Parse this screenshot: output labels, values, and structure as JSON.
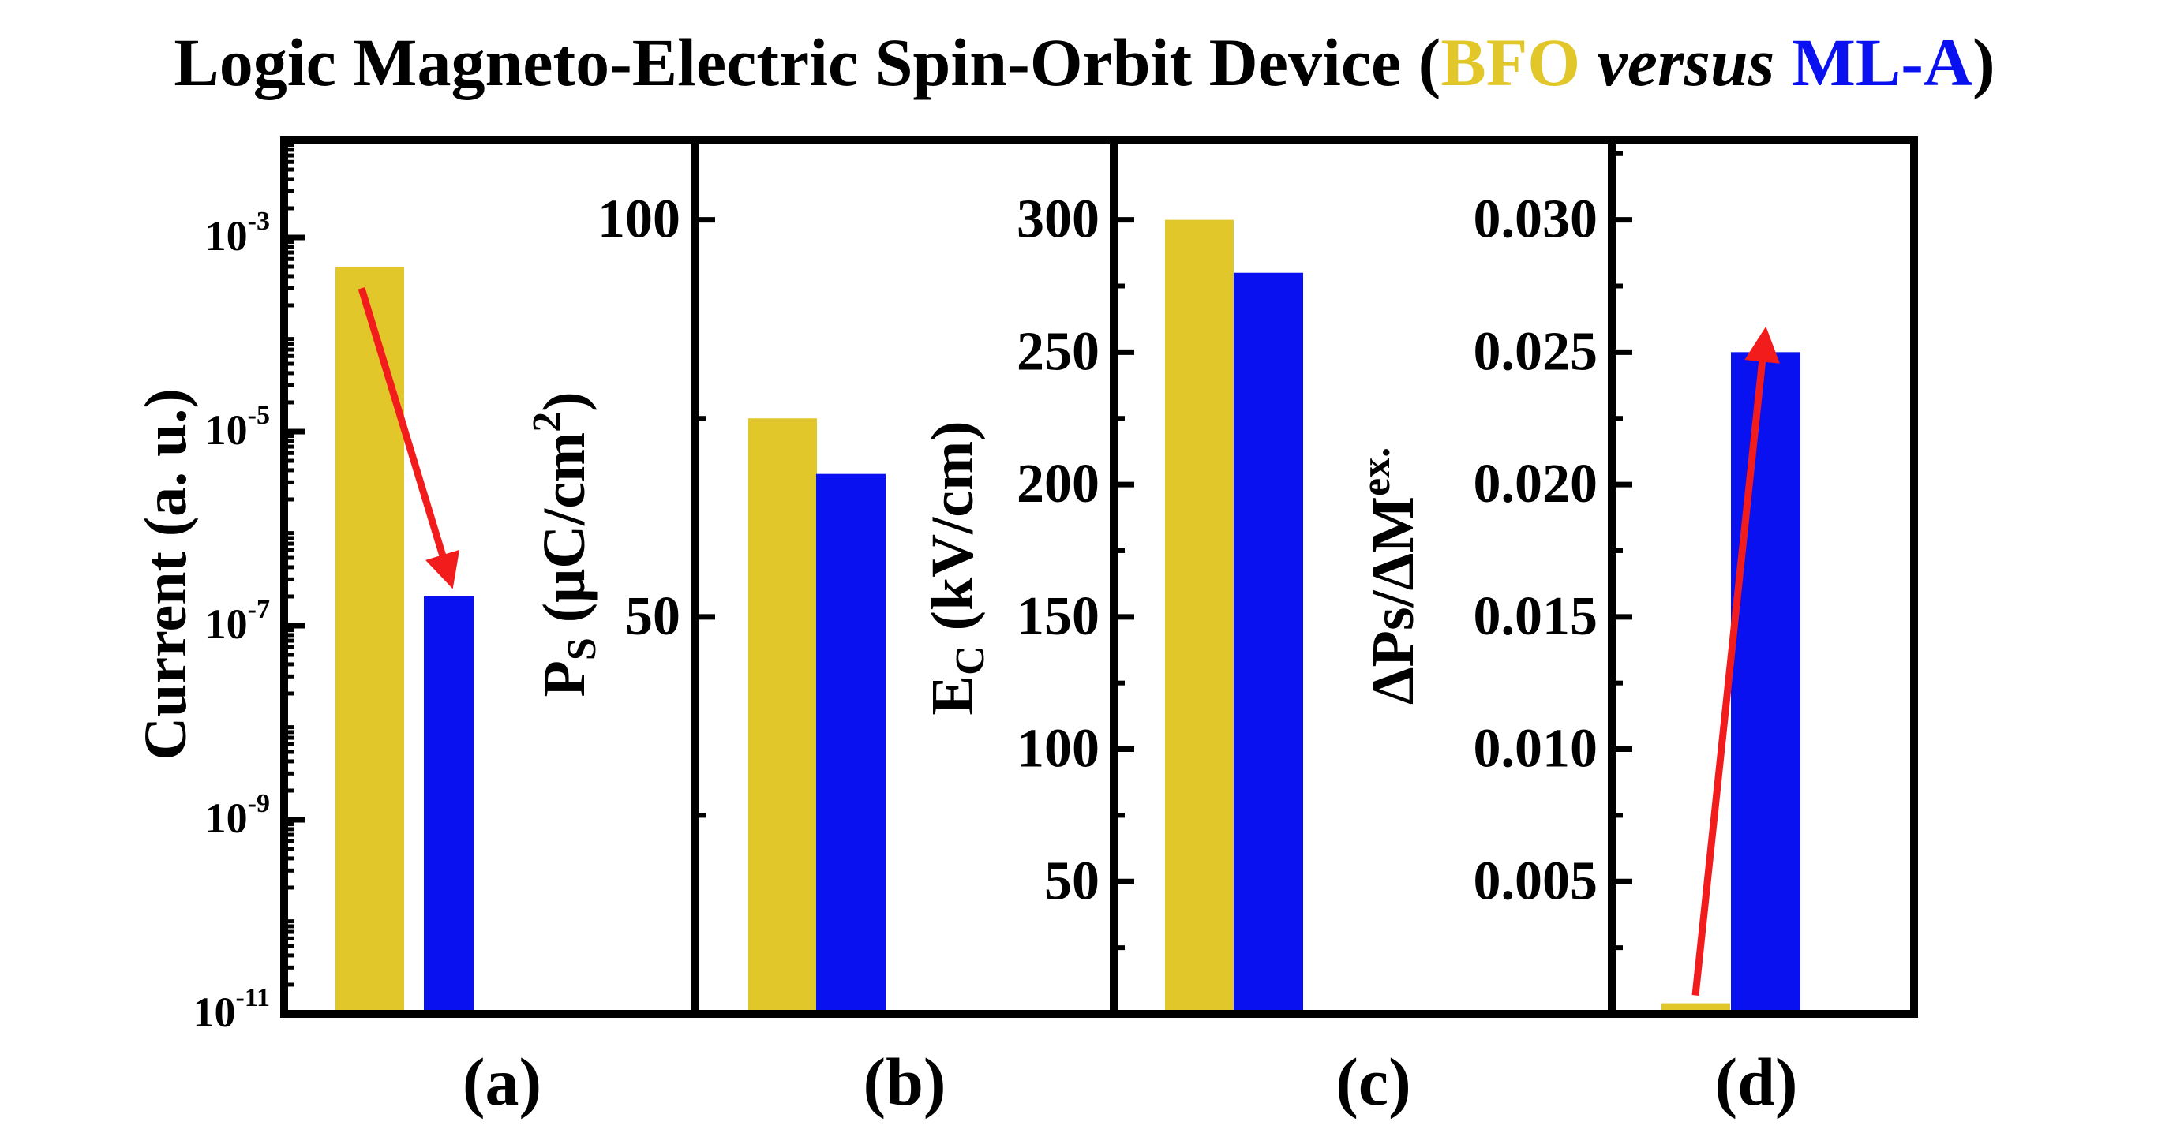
{
  "title": {
    "prefix": "Logic Magneto-Electric Spin-Orbit Device (",
    "bfo": "BFO",
    "versus": " versus ",
    "mla": "ML-A",
    "suffix": ")"
  },
  "colors": {
    "bfo": "#e2c72a",
    "mla": "#0a11f0",
    "arrow": "#f21c1c",
    "axis": "#000000"
  },
  "chart_data": [
    {
      "id": "a",
      "type": "bar",
      "panel_label": "(a)",
      "ylabel": "Current (a. u.)",
      "yscale": "log",
      "ylim": [
        1e-11,
        0.01
      ],
      "ticks": [
        {
          "value": 0.001,
          "base": "10",
          "exp": "-3"
        },
        {
          "value": 1e-05,
          "base": "10",
          "exp": "-5"
        },
        {
          "value": 1e-07,
          "base": "10",
          "exp": "-7"
        },
        {
          "value": 1e-09,
          "base": "10",
          "exp": "-9"
        },
        {
          "value": 1e-11,
          "base": "10",
          "exp": "-11"
        }
      ],
      "categories": [
        "BFO",
        "ML-A"
      ],
      "values": [
        0.0005,
        2e-07
      ],
      "arrow": {
        "from": 0.0003,
        "to": 3e-07,
        "direction": "down"
      }
    },
    {
      "id": "b",
      "type": "bar",
      "panel_label": "(b)",
      "ylabel": {
        "main": "P",
        "sub": "S",
        "rest": " (μC/cm",
        "sup": "2",
        "end": ")"
      },
      "yscale": "linear",
      "ylim": [
        0,
        110
      ],
      "ticks": [
        {
          "value": 100,
          "label": "100"
        },
        {
          "value": 50,
          "label": "50"
        }
      ],
      "minor_ticks": [
        75,
        25
      ],
      "categories": [
        "BFO",
        "ML-A"
      ],
      "values": [
        75,
        68
      ]
    },
    {
      "id": "c",
      "type": "bar",
      "panel_label": "(c)",
      "ylabel": {
        "main": "E",
        "sub": "C",
        "rest": " (kV/cm)"
      },
      "yscale": "linear",
      "ylim": [
        0,
        330
      ],
      "ticks": [
        {
          "value": 300,
          "label": "300"
        },
        {
          "value": 250,
          "label": "250"
        },
        {
          "value": 200,
          "label": "200"
        },
        {
          "value": 150,
          "label": "150"
        },
        {
          "value": 100,
          "label": "100"
        },
        {
          "value": 50,
          "label": "50"
        }
      ],
      "minor_ticks": [
        275,
        225,
        175,
        125,
        75,
        25
      ],
      "categories": [
        "BFO",
        "ML-A"
      ],
      "values": [
        300,
        280
      ]
    },
    {
      "id": "d",
      "type": "bar",
      "panel_label": "(d)",
      "ylabel": {
        "main": "ΔPs/ΔM",
        "sub": "ex."
      },
      "yscale": "linear",
      "ylim": [
        0,
        0.033
      ],
      "ticks": [
        {
          "value": 0.03,
          "label": "0.030"
        },
        {
          "value": 0.025,
          "label": "0.025"
        },
        {
          "value": 0.02,
          "label": "0.020"
        },
        {
          "value": 0.015,
          "label": "0.015"
        },
        {
          "value": 0.01,
          "label": "0.010"
        },
        {
          "value": 0.005,
          "label": "0.005"
        }
      ],
      "minor_ticks": [
        0.0325,
        0.0275,
        0.0225,
        0.0175,
        0.0125,
        0.0075,
        0.0025
      ],
      "categories": [
        "BFO",
        "ML-A"
      ],
      "values": [
        0.0004,
        0.025
      ],
      "arrow": {
        "from": 0.0007,
        "to": 0.0256,
        "direction": "up"
      }
    }
  ]
}
